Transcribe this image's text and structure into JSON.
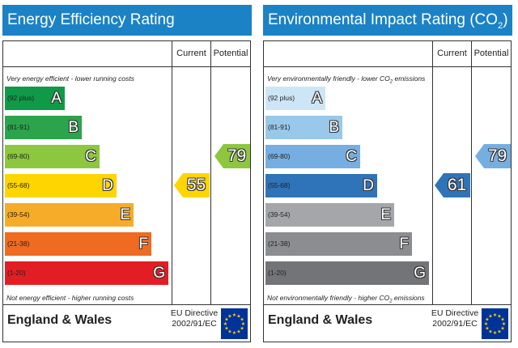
{
  "panels": [
    {
      "title": "Energy Efficiency Rating",
      "title_sub": "",
      "col_current": "Current",
      "col_potential": "Potential",
      "note_top": "Very energy efficient - lower running costs",
      "note_top_sub": "",
      "note_top_tail": "",
      "note_bottom": "Not energy efficient - higher running costs",
      "note_bottom_sub": "",
      "note_bottom_tail": "",
      "bands": [
        {
          "range": "(92 plus)",
          "letter": "A",
          "color": "#109a48"
        },
        {
          "range": "(81-91)",
          "letter": "B",
          "color": "#2ba44b"
        },
        {
          "range": "(69-80)",
          "letter": "C",
          "color": "#8dc63f"
        },
        {
          "range": "(55-68)",
          "letter": "D",
          "color": "#ffd500"
        },
        {
          "range": "(39-54)",
          "letter": "E",
          "color": "#f7ac29"
        },
        {
          "range": "(21-38)",
          "letter": "F",
          "color": "#ef6b22"
        },
        {
          "range": "(1-20)",
          "letter": "G",
          "color": "#e31d24"
        }
      ],
      "current": {
        "value": "55",
        "band": "D",
        "color": "#ffd500"
      },
      "potential": {
        "value": "79",
        "band": "C",
        "color": "#8dc63f"
      },
      "footer_region": "England & Wales",
      "footer_directive_line1": "EU Directive",
      "footer_directive_line2": "2002/91/EC"
    },
    {
      "title": "Environmental Impact Rating (CO",
      "title_sub": "2",
      "title_tail": ")",
      "col_current": "Current",
      "col_potential": "Potential",
      "note_top": "Very environmentally friendly - lower CO",
      "note_top_sub": "2",
      "note_top_tail": " emissions",
      "note_bottom": "Not environmentally friendly - higher CO",
      "note_bottom_sub": "2",
      "note_bottom_tail": " emissions",
      "bands": [
        {
          "range": "(92 plus)",
          "letter": "A",
          "color": "#cde6f6"
        },
        {
          "range": "(81-91)",
          "letter": "B",
          "color": "#98c8ea"
        },
        {
          "range": "(69-80)",
          "letter": "C",
          "color": "#76aee1"
        },
        {
          "range": "(55-68)",
          "letter": "D",
          "color": "#2f73b9"
        },
        {
          "range": "(39-54)",
          "letter": "E",
          "color": "#a4a6a9"
        },
        {
          "range": "(21-38)",
          "letter": "F",
          "color": "#8c8d90"
        },
        {
          "range": "(1-20)",
          "letter": "G",
          "color": "#737477"
        }
      ],
      "current": {
        "value": "61",
        "band": "D",
        "color": "#2f73b9"
      },
      "potential": {
        "value": "79",
        "band": "C",
        "color": "#76aee1"
      },
      "footer_region": "England & Wales",
      "footer_directive_line1": "EU Directive",
      "footer_directive_line2": "2002/91/EC"
    }
  ]
}
